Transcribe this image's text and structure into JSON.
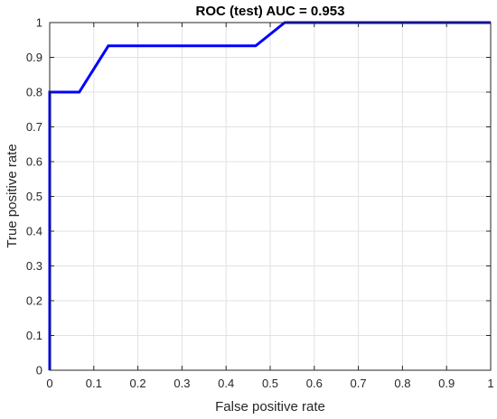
{
  "chart_data": {
    "type": "line",
    "title": "ROC (test) AUC = 0.953",
    "xlabel": "False positive rate",
    "ylabel": "True positive rate",
    "xlim": [
      0,
      1
    ],
    "ylim": [
      0,
      1
    ],
    "grid": true,
    "xticks": [
      0,
      0.1,
      0.2,
      0.3,
      0.4,
      0.5,
      0.6,
      0.7,
      0.8,
      0.9,
      1
    ],
    "yticks": [
      0,
      0.1,
      0.2,
      0.3,
      0.4,
      0.5,
      0.6,
      0.7,
      0.8,
      0.9,
      1
    ],
    "xtick_labels": [
      "0",
      "0.1",
      "0.2",
      "0.3",
      "0.4",
      "0.5",
      "0.6",
      "0.7",
      "0.8",
      "0.9",
      "1"
    ],
    "ytick_labels": [
      "0",
      "0.1",
      "0.2",
      "0.3",
      "0.4",
      "0.5",
      "0.6",
      "0.7",
      "0.8",
      "0.9",
      "1"
    ],
    "series": [
      {
        "color": "#0000ff",
        "x": [
          0,
          0,
          0.067,
          0.133,
          0.467,
          0.533,
          1
        ],
        "y": [
          0,
          0.8,
          0.8,
          0.933,
          0.933,
          1,
          1
        ]
      }
    ]
  }
}
